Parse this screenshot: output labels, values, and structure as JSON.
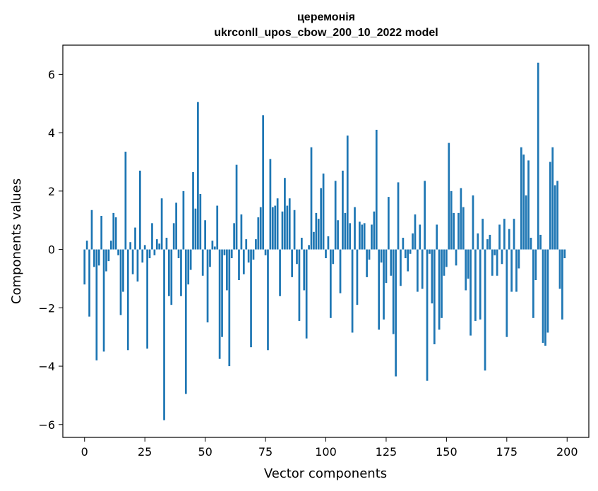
{
  "chart_data": {
    "type": "bar",
    "title": "церемонія",
    "subtitle": "ukrconll_upos_cbow_200_10_2022 model",
    "xlabel": "Vector components",
    "ylabel": "Components values",
    "xlim": [
      -9,
      209
    ],
    "ylim": [
      -6.44,
      7.0
    ],
    "xticks": [
      0,
      25,
      50,
      75,
      100,
      125,
      150,
      175,
      200
    ],
    "yticks": [
      -6,
      -4,
      -2,
      0,
      2,
      4,
      6
    ],
    "ytick_labels": [
      "−6",
      "−4",
      "−2",
      "0",
      "2",
      "4",
      "6"
    ],
    "grid": false,
    "bar_color": "#1f77b4",
    "x": [
      0,
      1,
      2,
      3,
      4,
      5,
      6,
      7,
      8,
      9,
      10,
      11,
      12,
      13,
      14,
      15,
      16,
      17,
      18,
      19,
      20,
      21,
      22,
      23,
      24,
      25,
      26,
      27,
      28,
      29,
      30,
      31,
      32,
      33,
      34,
      35,
      36,
      37,
      38,
      39,
      40,
      41,
      42,
      43,
      44,
      45,
      46,
      47,
      48,
      49,
      50,
      51,
      52,
      53,
      54,
      55,
      56,
      57,
      58,
      59,
      60,
      61,
      62,
      63,
      64,
      65,
      66,
      67,
      68,
      69,
      70,
      71,
      72,
      73,
      74,
      75,
      76,
      77,
      78,
      79,
      80,
      81,
      82,
      83,
      84,
      85,
      86,
      87,
      88,
      89,
      90,
      91,
      92,
      93,
      94,
      95,
      96,
      97,
      98,
      99,
      100,
      101,
      102,
      103,
      104,
      105,
      106,
      107,
      108,
      109,
      110,
      111,
      112,
      113,
      114,
      115,
      116,
      117,
      118,
      119,
      120,
      121,
      122,
      123,
      124,
      125,
      126,
      127,
      128,
      129,
      130,
      131,
      132,
      133,
      134,
      135,
      136,
      137,
      138,
      139,
      140,
      141,
      142,
      143,
      144,
      145,
      146,
      147,
      148,
      149,
      150,
      151,
      152,
      153,
      154,
      155,
      156,
      157,
      158,
      159,
      160,
      161,
      162,
      163,
      164,
      165,
      166,
      167,
      168,
      169,
      170,
      171,
      172,
      173,
      174,
      175,
      176,
      177,
      178,
      179,
      180,
      181,
      182,
      183,
      184,
      185,
      186,
      187,
      188,
      189,
      190,
      191,
      192,
      193,
      194,
      195,
      196,
      197,
      198,
      199
    ],
    "values": [
      -1.2,
      0.3,
      -2.3,
      1.35,
      -0.6,
      -3.8,
      -0.55,
      1.15,
      -3.5,
      -0.75,
      -0.4,
      0.3,
      1.25,
      1.1,
      -0.2,
      -2.25,
      -1.45,
      3.35,
      -3.45,
      0.25,
      -0.85,
      0.75,
      -1.1,
      2.7,
      -0.45,
      0.15,
      -3.4,
      -0.3,
      0.9,
      -0.2,
      0.35,
      0.2,
      1.75,
      -5.85,
      0.4,
      -1.6,
      -1.9,
      0.9,
      1.6,
      -0.3,
      -1.6,
      2.0,
      -4.95,
      -1.2,
      -0.7,
      2.65,
      1.4,
      5.05,
      1.9,
      -0.9,
      1.0,
      -2.5,
      -0.6,
      0.3,
      0.1,
      1.5,
      -3.75,
      -3.0,
      -0.2,
      -1.4,
      -4.0,
      -0.3,
      0.9,
      2.9,
      -1.05,
      1.2,
      -0.85,
      0.35,
      -0.45,
      -3.35,
      -0.35,
      0.35,
      1.1,
      1.45,
      4.6,
      -0.2,
      -3.45,
      3.1,
      1.45,
      1.5,
      1.75,
      -1.6,
      1.3,
      2.45,
      1.5,
      1.75,
      -0.95,
      1.35,
      -0.5,
      -2.45,
      0.4,
      -1.4,
      -3.05,
      0.15,
      3.5,
      0.6,
      1.25,
      1.05,
      2.1,
      2.6,
      -0.3,
      0.45,
      -2.35,
      -0.5,
      2.35,
      1.0,
      -1.5,
      2.7,
      1.25,
      3.9,
      0.9,
      -2.85,
      1.45,
      -1.9,
      0.95,
      0.85,
      0.9,
      -0.95,
      -0.35,
      0.85,
      1.3,
      4.1,
      -2.75,
      -0.45,
      -2.4,
      -1.15,
      1.8,
      -0.9,
      -2.9,
      -4.35,
      2.3,
      -1.25,
      0.4,
      -0.3,
      -0.75,
      -0.15,
      0.55,
      1.2,
      -1.45,
      0.85,
      -1.35,
      2.35,
      -4.5,
      -0.15,
      -1.85,
      -3.25,
      0.85,
      -2.75,
      -2.35,
      -0.9,
      -0.6,
      3.65,
      2.0,
      1.25,
      -0.55,
      1.25,
      2.1,
      1.45,
      -1.4,
      -1.0,
      -2.95,
      1.85,
      -2.45,
      0.55,
      -2.4,
      1.05,
      -4.15,
      0.35,
      0.5,
      -0.9,
      -0.2,
      -0.9,
      0.85,
      -0.5,
      1.05,
      -3.0,
      0.7,
      -1.45,
      1.05,
      -1.45,
      -0.65,
      3.5,
      3.25,
      1.85,
      3.05,
      0.4,
      -2.35,
      -1.05,
      6.4,
      0.5,
      -3.2,
      -3.3,
      -2.85,
      3.0,
      3.5,
      2.2,
      2.35,
      -1.35,
      -2.4,
      -0.3
    ]
  }
}
